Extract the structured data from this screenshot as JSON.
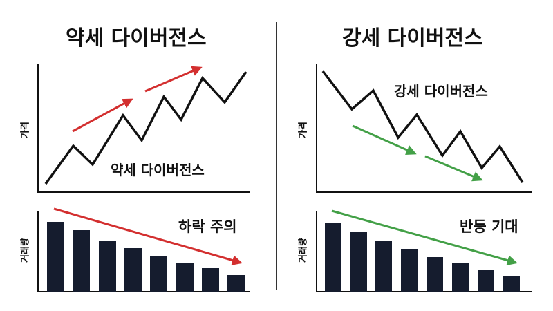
{
  "panels": [
    {
      "title": "약세 다이버전스",
      "price_axis_label": "가격",
      "price_annotation": "약세 다이버전스",
      "volume_axis_label": "거래량",
      "volume_callout": "하락 주의",
      "price_arrow_color": "#d32f2f",
      "volume_arrow_color": "#d32f2f",
      "price_trend": "up",
      "volume_trend": "down"
    },
    {
      "title": "강세 다이버전스",
      "price_axis_label": "가격",
      "price_annotation": "강세 다이버전스",
      "volume_axis_label": "거래량",
      "volume_callout": "반등 기대",
      "price_arrow_color": "#43a047",
      "volume_arrow_color": "#43a047",
      "price_trend": "down",
      "volume_trend": "down"
    }
  ],
  "colors": {
    "line": "#111111",
    "bar": "#151c2e",
    "divider": "#333333"
  }
}
